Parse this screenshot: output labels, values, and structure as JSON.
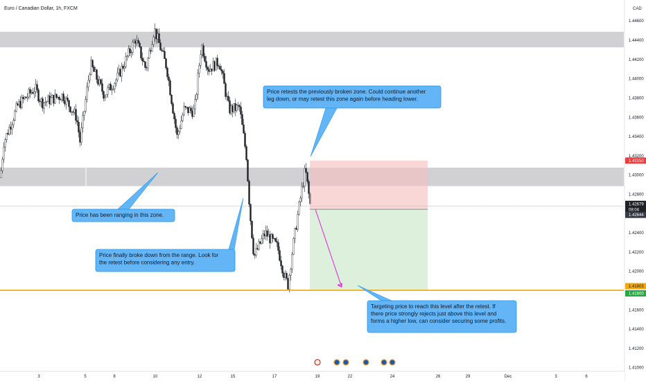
{
  "header": {
    "title": "Euro / Canadian Dollar, 1h, FXCM",
    "currency": "CAD"
  },
  "chart_data": {
    "type": "candlestick",
    "y_axis": {
      "ticks": [
        "1.44600",
        "1.44400",
        "1.44200",
        "1.44000",
        "1.43800",
        "1.43600",
        "1.43400",
        "1.43200",
        "1.43000",
        "1.42800",
        "1.42600",
        "1.42400",
        "1.42200",
        "1.42000",
        "1.41600",
        "1.41400",
        "1.41200",
        "1.41000"
      ],
      "range": [
        1.4089,
        1.4476
      ]
    },
    "x_axis": {
      "ticks": [
        "3",
        "5",
        "8",
        "10",
        "12",
        "15",
        "17",
        "19",
        "22",
        "24",
        "26",
        "29",
        "Dec",
        "3",
        "6"
      ]
    },
    "price_labels": [
      {
        "text": "1.43150",
        "color": "#ef3b3b"
      },
      {
        "text": "1.42679",
        "color": "#1e2228",
        "sub": "08:04"
      },
      {
        "text": "1.42644",
        "color": "#363a45"
      },
      {
        "text": "1.41803",
        "color": "#f5a700",
        "textColor": "#1e2228"
      },
      {
        "text": "1.41800",
        "color": "#27a844"
      }
    ],
    "zones": [
      {
        "name": "upper-resistance",
        "from": 1.44326,
        "to": 1.44488
      },
      {
        "name": "broken-support",
        "from": 1.42885,
        "to": 1.43077
      }
    ],
    "levels": [
      {
        "name": "target",
        "value": 1.41803,
        "color": "#f5a700"
      }
    ],
    "position": {
      "entry": 1.42644,
      "stop": 1.4315,
      "target": 1.418
    },
    "candles": {
      "start": 1.42975,
      "path": [
        [
          5,
          1.4334
        ],
        [
          25,
          1.4372
        ],
        [
          50,
          1.439
        ],
        [
          60,
          1.4375
        ],
        [
          90,
          1.4383
        ],
        [
          110,
          1.436
        ],
        [
          115,
          1.4335
        ],
        [
          130,
          1.4415
        ],
        [
          150,
          1.4383
        ],
        [
          168,
          1.44
        ],
        [
          180,
          1.4418
        ],
        [
          195,
          1.4441
        ],
        [
          210,
          1.441
        ],
        [
          222,
          1.4452
        ],
        [
          240,
          1.4412
        ],
        [
          255,
          1.434
        ],
        [
          265,
          1.4368
        ],
        [
          280,
          1.4366
        ],
        [
          290,
          1.4436
        ],
        [
          300,
          1.441
        ],
        [
          316,
          1.4418
        ],
        [
          330,
          1.4368
        ],
        [
          345,
          1.437
        ],
        [
          355,
          1.432
        ],
        [
          360,
          1.4262
        ],
        [
          366,
          1.4215
        ],
        [
          382,
          1.424
        ],
        [
          400,
          1.4225
        ],
        [
          410,
          1.4195
        ],
        [
          415,
          1.4186
        ],
        [
          422,
          1.4225
        ],
        [
          430,
          1.4263
        ],
        [
          440,
          1.4306
        ],
        [
          448,
          1.4264
        ]
      ]
    },
    "arrow": {
      "from": 1.42644,
      "to": 1.41813,
      "color": "#e040e0"
    }
  },
  "annotations": [
    {
      "text": "Price retests the previously broken zone. Could continue another\nleg down, or may retest this zone again before heading lower."
    },
    {
      "text": "Price has been ranging in this zone."
    },
    {
      "text": "Price finally broke down from the range. Look for\nthe retest before considering any entry."
    },
    {
      "text": "Targeting price to reach this level after the retest. If\nthere price strongly rejects just above this level and\nforms a higher low, can consider securing some profits."
    }
  ],
  "colors": {
    "bull": "#ffffff",
    "bear": "#1e2228",
    "wick": "#1e2228",
    "zone": "#c9c9cd",
    "callout": "#64b5f6",
    "callout_border": "#2196f3"
  }
}
